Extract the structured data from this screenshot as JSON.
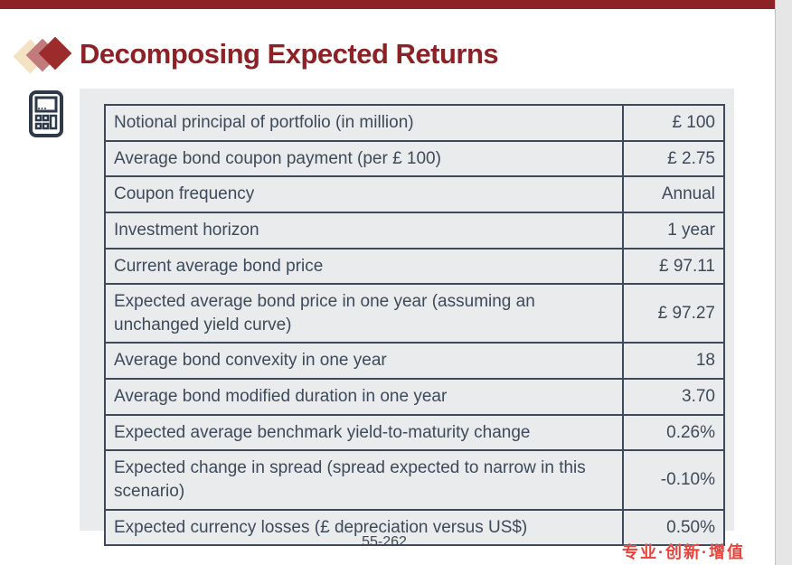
{
  "title": {
    "text": "Decomposing Expected Returns"
  },
  "colors": {
    "accent_maroon": "#8C2126",
    "diamond_cream": "#F3E3C3",
    "diamond_rose": "#C27A7D",
    "diamond_dark_red": "#9C2B2B",
    "table_ink": "#3E4A59",
    "panel_background": "#EAEBED",
    "brand_red": "#E8423A",
    "edge_strip_gray": "#E6E6E6"
  },
  "icons": {
    "diamond_decoration": "three-overlapping-diamonds",
    "calculator": "calculator-icon"
  },
  "table": {
    "rows": [
      {
        "label": "Notional principal of portfolio (in million)",
        "value": "£ 100",
        "tall": false
      },
      {
        "label": "Average bond coupon payment (per £ 100)",
        "value": "£ 2.75",
        "tall": false
      },
      {
        "label": "Coupon frequency",
        "value": "Annual",
        "tall": false
      },
      {
        "label": "Investment horizon",
        "value": "1 year",
        "tall": false
      },
      {
        "label": "Current average bond price",
        "value": "£ 97.11",
        "tall": false
      },
      {
        "label": "Expected average bond price in one year (assuming an unchanged yield curve)",
        "value": "£ 97.27",
        "tall": true
      },
      {
        "label": "Average bond convexity in one year",
        "value": "18",
        "tall": false
      },
      {
        "label": "Average bond modified duration in one year",
        "value": "3.70",
        "tall": false
      },
      {
        "label": "Expected average benchmark yield-to-maturity change",
        "value": "0.26%",
        "tall": false
      },
      {
        "label": "Expected change in spread (spread expected to narrow in this scenario)",
        "value": "-0.10%",
        "tall": true
      },
      {
        "label": "Expected currency losses (£ depreciation versus US$)",
        "value": "0.50%",
        "tall": false
      }
    ]
  },
  "footer": {
    "page_number": "55-262",
    "brand_text": "专业·创新·增值"
  }
}
